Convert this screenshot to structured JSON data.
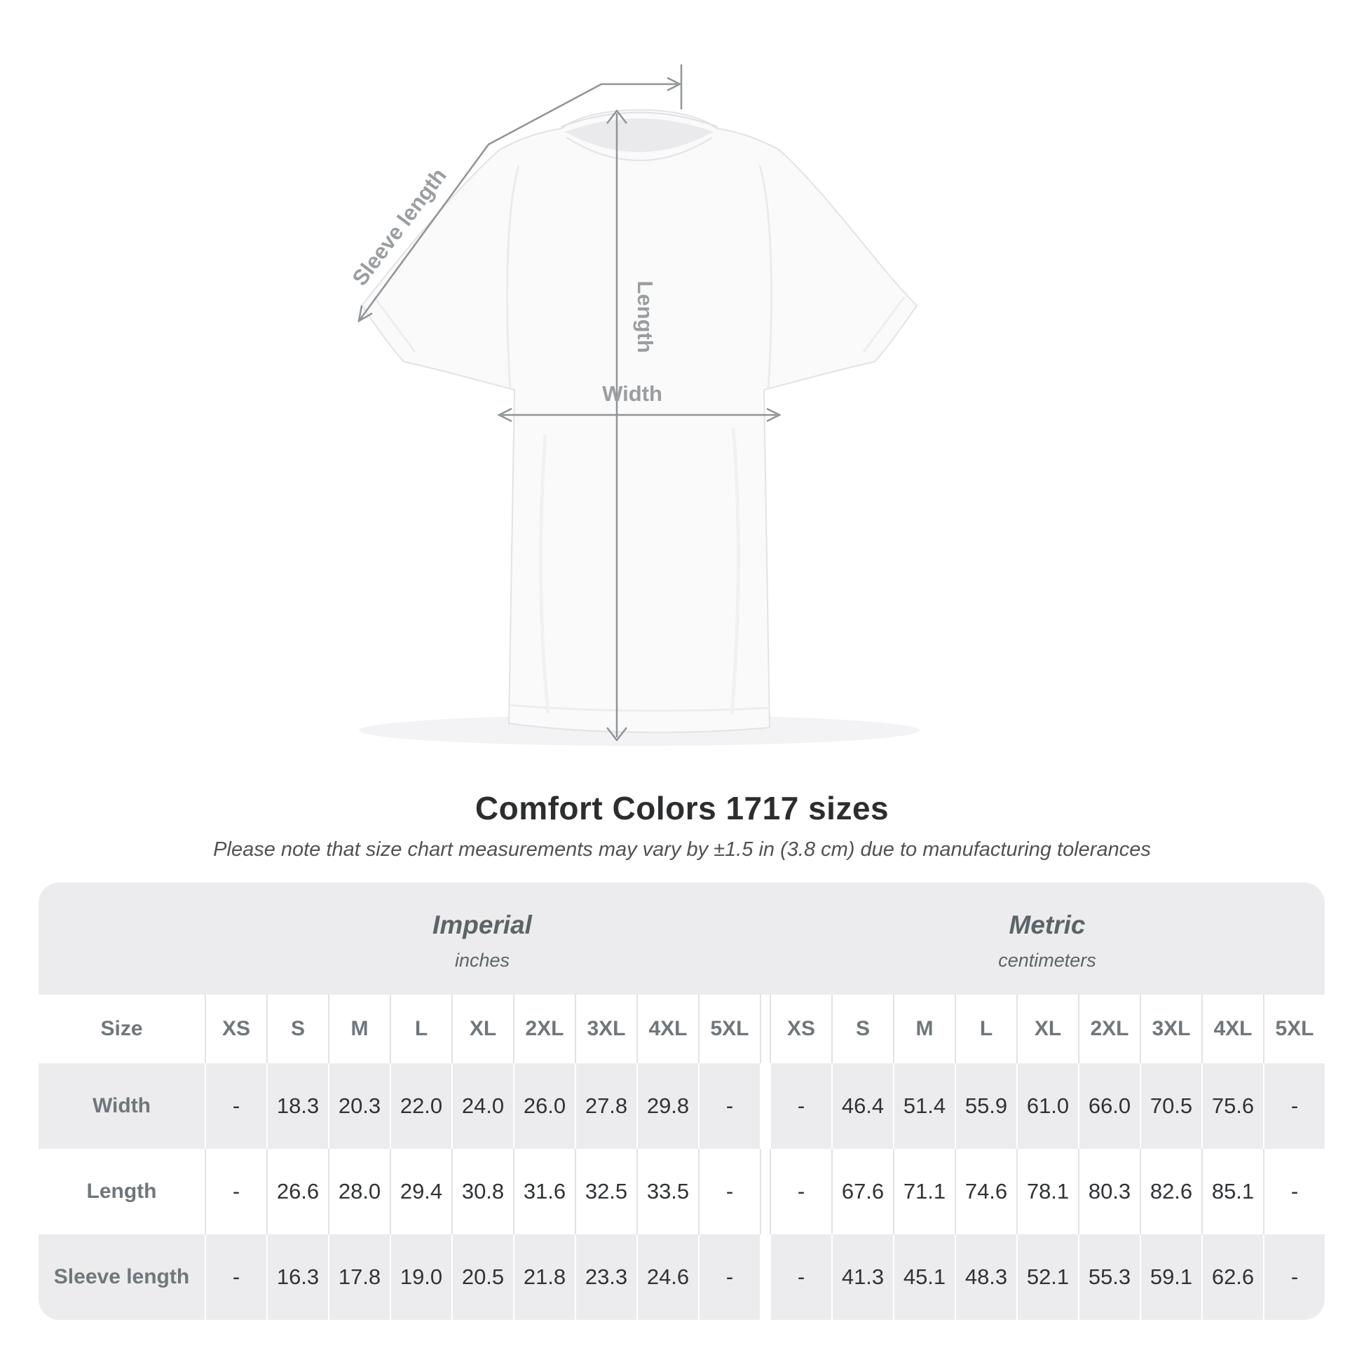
{
  "diagram": {
    "labels": {
      "sleeve_length": "Sleeve length",
      "length": "Length",
      "width": "Width"
    },
    "line_color": "#8f9497",
    "label_color": "#9a9ea1"
  },
  "title": "Comfort Colors 1717 sizes",
  "subtitle": "Please note that size chart measurements may vary by ±1.5 in (3.8 cm) due to manufacturing tolerances",
  "table": {
    "groups": [
      {
        "label": "Imperial",
        "sublabel": "inches"
      },
      {
        "label": "Metric",
        "sublabel": "centimeters"
      }
    ],
    "size_header": "Size",
    "columns": [
      "XS",
      "S",
      "M",
      "L",
      "XL",
      "2XL",
      "3XL",
      "4XL",
      "5XL"
    ],
    "rows": [
      {
        "label": "Width",
        "imperial": [
          "-",
          "18.3",
          "20.3",
          "22.0",
          "24.0",
          "26.0",
          "27.8",
          "29.8",
          "-"
        ],
        "metric": [
          "-",
          "46.4",
          "51.4",
          "55.9",
          "61.0",
          "66.0",
          "70.5",
          "75.6",
          "-"
        ]
      },
      {
        "label": "Length",
        "imperial": [
          "-",
          "26.6",
          "28.0",
          "29.4",
          "30.8",
          "31.6",
          "32.5",
          "33.5",
          "-"
        ],
        "metric": [
          "-",
          "67.6",
          "71.1",
          "74.6",
          "78.1",
          "80.3",
          "82.6",
          "85.1",
          "-"
        ]
      },
      {
        "label": "Sleeve length",
        "imperial": [
          "-",
          "16.3",
          "17.8",
          "19.0",
          "20.5",
          "21.8",
          "23.3",
          "24.6",
          "-"
        ],
        "metric": [
          "-",
          "41.3",
          "45.1",
          "48.3",
          "52.1",
          "55.3",
          "59.1",
          "62.6",
          "-"
        ]
      }
    ]
  }
}
